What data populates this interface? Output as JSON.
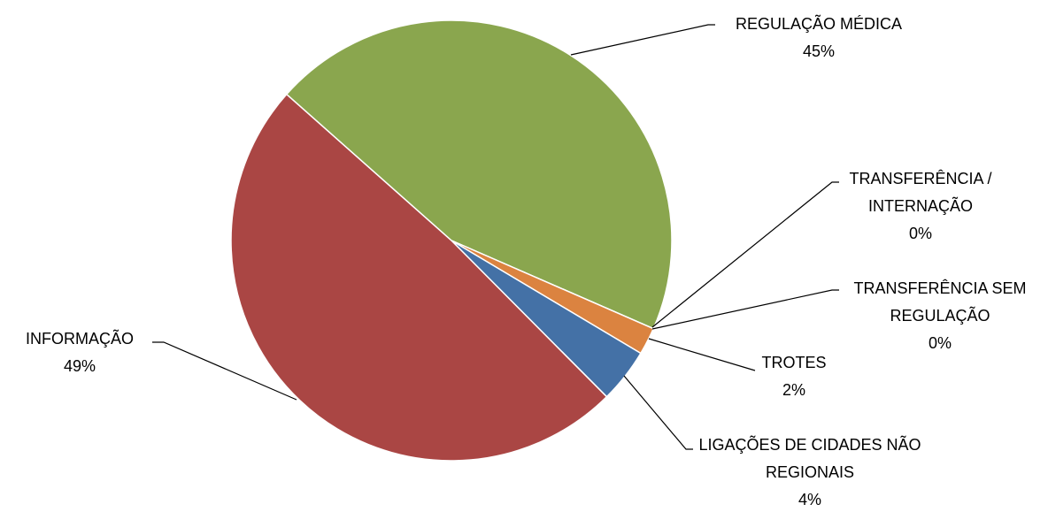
{
  "chart_data": {
    "type": "pie",
    "categories": [
      "REGULAÇÃO MÉDICA",
      "TRANSFERÊNCIA / INTERNAÇÃO",
      "TRANSFERÊNCIA SEM REGULAÇÃO",
      "TROTES",
      "LIGAÇÕES DE CIDADES NÃO REGIONAIS",
      "INFORMAÇÃO"
    ],
    "values": [
      45,
      0,
      0,
      2,
      4,
      49
    ],
    "value_labels": [
      "45%",
      "0%",
      "0%",
      "2%",
      "4%",
      "49%"
    ],
    "colors": [
      "#8aa64e",
      "#7f63a0",
      "#4aa0b8",
      "#db8340",
      "#4471a6",
      "#aa4644"
    ]
  }
}
